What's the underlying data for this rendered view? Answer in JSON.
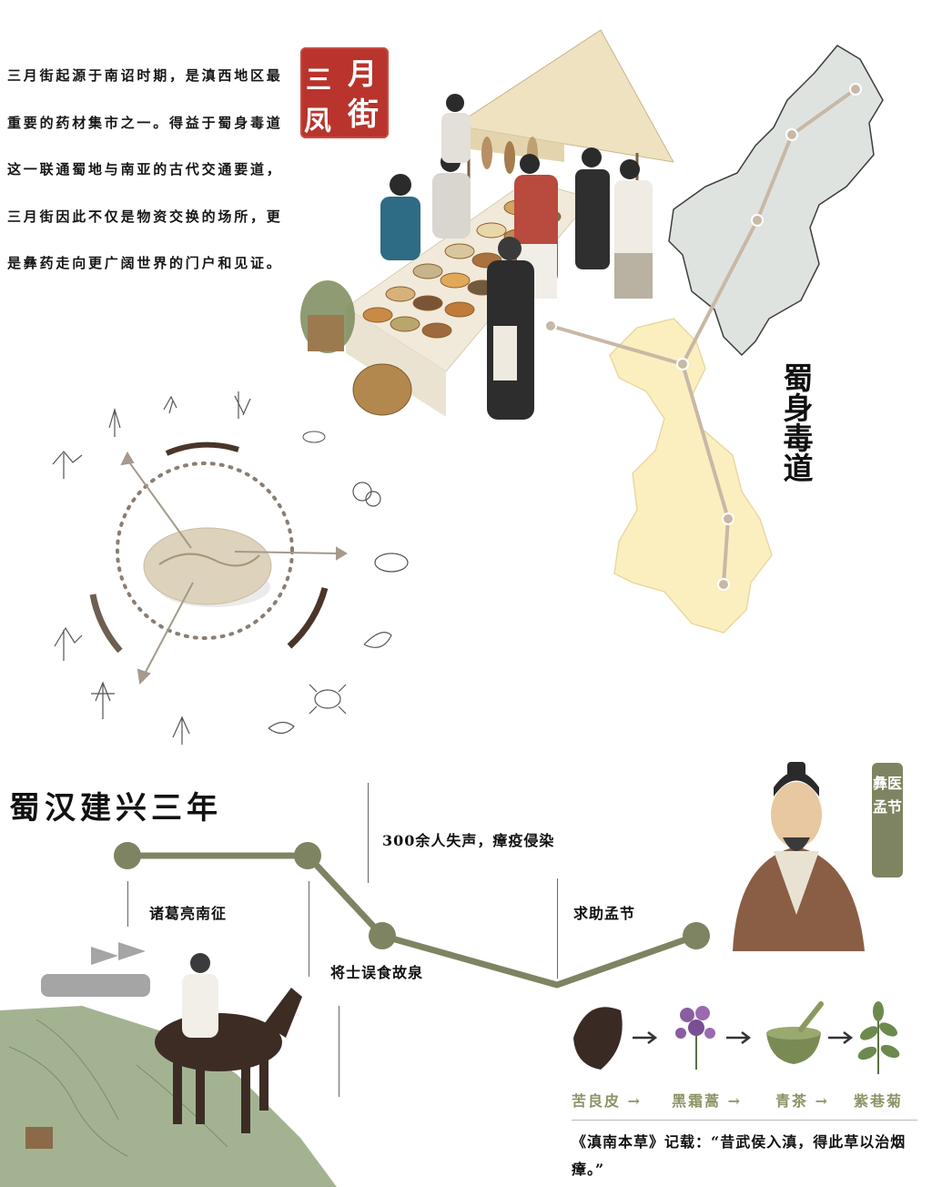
{
  "intro": {
    "paragraph": "三月街起源于南诏时期，是滇西地区最重要的药材集市之一。得益于蜀身毒道这一联通蜀地与南亚的古代交通要道，三月街因此不仅是物资交换的场所，更是彝药走向更广阔世界的门户和见证。"
  },
  "seal": {
    "c1": "三",
    "c2": "月",
    "c3": "街",
    "c4": "凤"
  },
  "route": {
    "name": "蜀身毒道"
  },
  "timeline": {
    "title": "蜀汉建兴三年",
    "events": [
      "诸葛亮南征",
      "将士误食故泉",
      "300余人失声，瘴疫侵染",
      "求助孟节"
    ]
  },
  "badge": {
    "label": "彝医孟节"
  },
  "herbs": {
    "items": [
      "苦良皮",
      "黑霜蒿",
      "青茶",
      "紫巷菊"
    ],
    "arrow": "→"
  },
  "quote": {
    "text": "《滇南本草》记载：“昔武侯入滇，得此草以治烟瘴。”"
  },
  "colors": {
    "accent_olive": "#7e8461",
    "seal_red": "#b8342c",
    "map_yellow": "#fcefbf",
    "map_gray": "#dfe3df",
    "route_line": "#c8b8a6"
  },
  "icons": [
    "market-illustration",
    "map-icon",
    "compass-circle",
    "herb-icon",
    "horse-rider-illustration",
    "scholar-portrait",
    "mortar-icon",
    "leaf-icon",
    "flower-icon"
  ]
}
